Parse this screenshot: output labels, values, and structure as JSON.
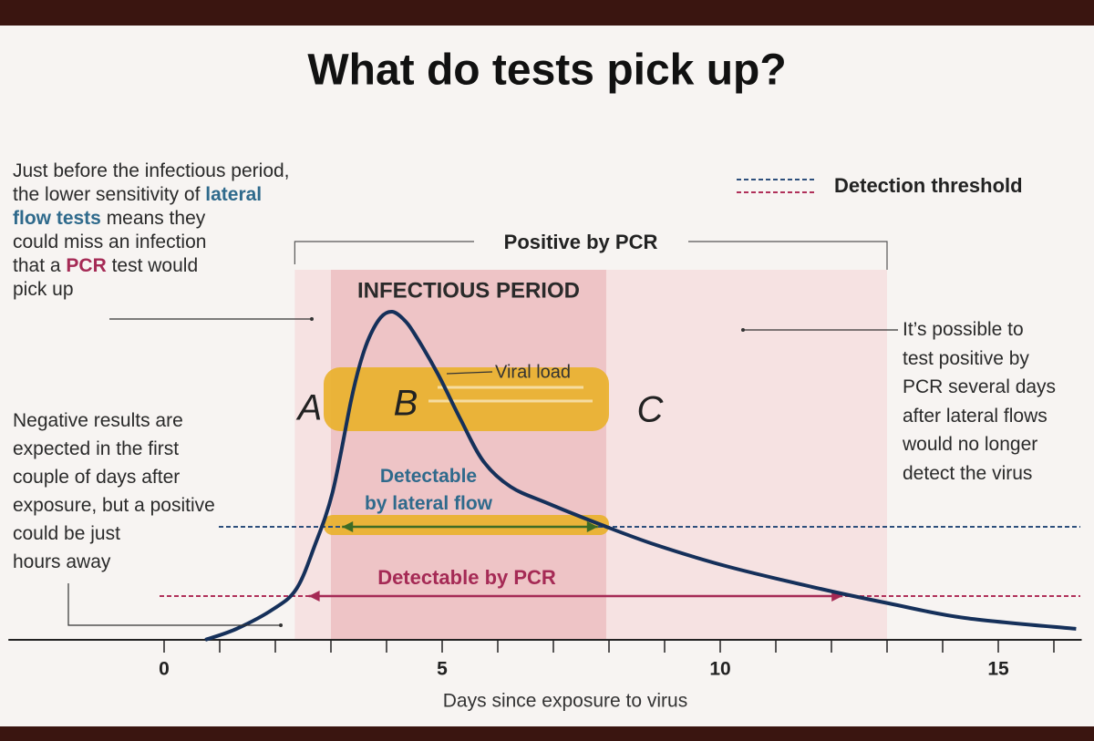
{
  "chart_data": {
    "type": "line",
    "title": "What do tests pick up?",
    "x_label": "Days since exposure to virus",
    "xlim": [
      -2.8,
      16.5
    ],
    "xticks": [
      0,
      5,
      10,
      15
    ],
    "xticks_minor": [
      1,
      2,
      3,
      4,
      6,
      7,
      8,
      9,
      11,
      12,
      13,
      14,
      16
    ],
    "ylim": [
      0,
      100
    ],
    "series": [
      {
        "name": "Viral load",
        "color": "#15305a",
        "x": [
          0.74,
          1.3,
          1.97,
          2.38,
          2.7,
          3.03,
          3.36,
          3.52,
          3.69,
          3.9,
          4.1,
          4.3,
          4.5,
          4.92,
          5.33,
          5.74,
          6.23,
          6.89,
          7.87,
          8.85,
          10.16,
          11.8,
          13.03,
          14.4,
          16.4
        ],
        "values": [
          0,
          3,
          8.5,
          14,
          25.5,
          40.5,
          65.5,
          75.5,
          83,
          88.5,
          90,
          88,
          84,
          73,
          60.5,
          49,
          42,
          37.5,
          31.5,
          26,
          20,
          14,
          10,
          6,
          3
        ]
      }
    ],
    "legend": {
      "label": "Detection threshold",
      "position": "top-right"
    },
    "thresholds": [
      {
        "value": 31,
        "color": "#2d4f7c"
      },
      {
        "value": 12,
        "color": "#b0305a"
      }
    ],
    "spans": [
      {
        "label": "Positive by PCR",
        "range": [
          2.35,
          13
        ],
        "color": "#f6e2e2"
      },
      {
        "label": "INFECTIOUS PERIOD",
        "range": [
          3,
          7.95
        ],
        "color": "#eec4c6"
      }
    ],
    "arrows": [
      {
        "label": "Detectable\nby lateral flow",
        "range": [
          3.2,
          7.8
        ],
        "threshold": 0,
        "color": "#3d6b26",
        "label_color": "#2f6a8c"
      },
      {
        "label": "Detectable by PCR",
        "range": [
          2.6,
          12.2
        ],
        "threshold": 1,
        "color": "#a52a55",
        "label_color": "#a52a55"
      }
    ],
    "handwritten": [
      "A",
      "B",
      "C"
    ],
    "notes": [
      {
        "parts": [
          {
            "text": "Just before the infectious period,\nthe lower sensitivity of "
          },
          {
            "text": "lateral\nflow tests",
            "color": "#2f6a8c"
          },
          {
            "text": " means they\ncould miss an infection\nthat a "
          },
          {
            "text": "PCR",
            "color": "#a52a55"
          },
          {
            "text": " test would\npick up"
          }
        ]
      },
      {
        "parts": [
          {
            "text": "Negative results are\nexpected in the first\ncouple of days after\nexposure, but a positive\ncould be just\nhours away"
          }
        ]
      },
      {
        "parts": [
          {
            "text": "It’s possible to\ntest positive by\nPCR several days\nafter lateral flows\nwould no longer\ndetect the virus"
          }
        ]
      }
    ]
  }
}
